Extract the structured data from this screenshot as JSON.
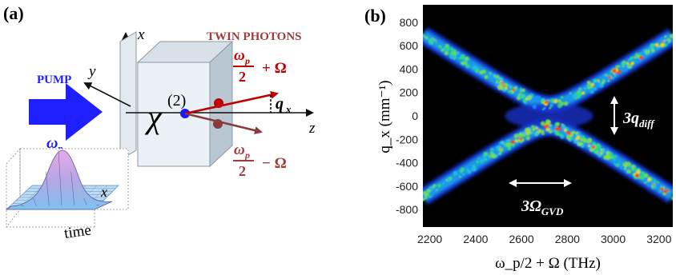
{
  "panel_a": {
    "label": "(a)",
    "pump": {
      "label": "PUMP",
      "omega": "ω",
      "omega_sub": "p"
    },
    "twin_photons": "TWIN PHOTONS",
    "chi": {
      "symbol": "χ",
      "order": "(2)"
    },
    "axes": {
      "x": "x",
      "y": "y",
      "z": "z"
    },
    "qx": {
      "symbol": "q",
      "sub": "x"
    },
    "signal": {
      "num": "ω",
      "num_sub": "p",
      "den": "2",
      "tail": "+ Ω"
    },
    "idler": {
      "num": "ω",
      "num_sub": "p",
      "den": "2",
      "tail": "− Ω"
    },
    "inset": {
      "x_label": "x",
      "time_label": "time"
    },
    "colors": {
      "pump": "#1f1fff",
      "signal": "#c00000",
      "idler": "#8b3a3a",
      "twin_label": "#a03c3c"
    }
  },
  "panel_b": {
    "label": "(b)",
    "q_diff_label": {
      "prefix": "3",
      "symbol": "q",
      "sub": "diff"
    },
    "omega_gvd_label": {
      "prefix": "3",
      "symbol": "Ω",
      "sub": "GVD"
    }
  },
  "chart_data": {
    "type": "heatmap",
    "xlabel": "ω_p/2 + Ω (THz)",
    "ylabel": "q_x (mm⁻¹)",
    "x_ticks": [
      2200,
      2400,
      2600,
      2800,
      3000,
      3200
    ],
    "y_ticks": [
      800,
      600,
      400,
      200,
      0,
      -200,
      -400,
      -600,
      -800
    ],
    "xlim": [
      2170,
      3260
    ],
    "ylim": [
      -950,
      950
    ],
    "background": "#000000",
    "x_center": 2720,
    "q_diff_half_width": 100,
    "arm_slope_mm_per_THz": 1.25
  }
}
